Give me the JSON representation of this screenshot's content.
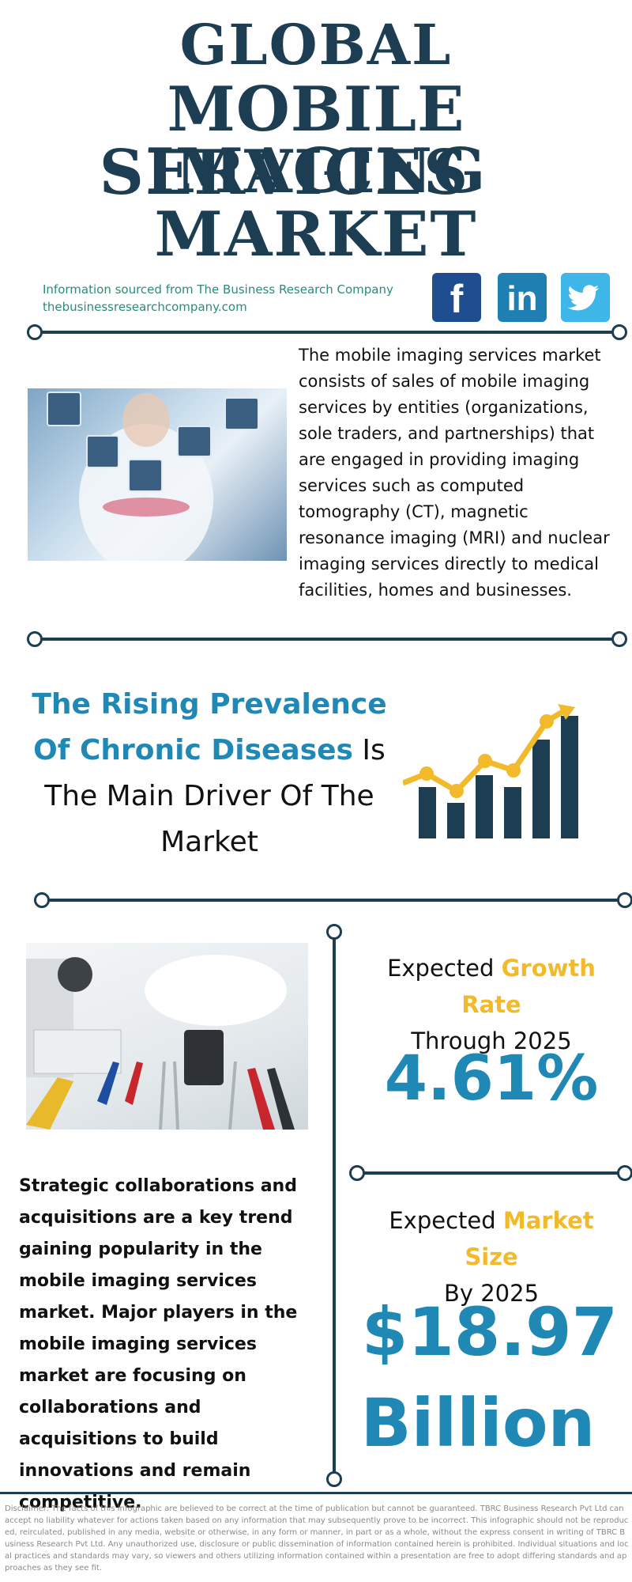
{
  "title": {
    "line1": "GLOBAL",
    "line2": "MOBILE IMAGING",
    "line3": "SERVICES",
    "line4": "MARKET"
  },
  "source": {
    "line1": "Information sourced from The Business Research Company",
    "line2": "thebusinessresearchcompany.com"
  },
  "social": {
    "facebook": "f",
    "linkedin": "in",
    "twitter_icon": "twitter-bird"
  },
  "intro": {
    "text": "The mobile imaging services market consists of sales of mobile imaging services by entities (organizations, sole traders, and partnerships) that are engaged in providing imaging services such as computed tomography (CT), magnetic resonance imaging (MRI) and nuclear imaging services directly to medical facilities, homes and businesses."
  },
  "driver": {
    "highlight1": "The Rising Prevalence",
    "highlight2": "Of Chronic Diseases",
    "rest1": " Is",
    "rest2": "The Main Driver Of The",
    "rest3": "Market"
  },
  "growth": {
    "prefix": "Expected ",
    "highlight": "Growth Rate",
    "line2": "Through 2025",
    "value": "4.61%"
  },
  "market_size": {
    "prefix": "Expected ",
    "highlight": "Market Size",
    "line2": "By 2025",
    "value1": "$18.97",
    "value2": "Billion"
  },
  "trend": {
    "text": "Strategic collaborations and acquisitions are a key trend gaining popularity in the mobile imaging services market. Major players in the mobile imaging services market are focusing on collaborations and acquisitions to build innovations and remain competitive."
  },
  "disclaimer": "Disclaimer: The facts of this infographic are believed to be correct at the time of publication but cannot be guaranteed. TBRC Business Research Pvt Ltd can accept no liability whatever for actions taken based on any information that may subsequently prove to be incorrect. This infographic should not be reproduced, reirculated, published in any media, website or otherwise, in any form or manner, in part or as a whole, without the express consent in writing of TBRC Business Research Pvt Ltd. Any unauthorized use, disclosure or public dissemination of information contained herein is prohibited. Individual situations and local practices and standards may vary, so viewers and others utilizing information contained within a presentation are free to adopt differing standards and approaches as they see fit.",
  "colors": {
    "navy": "#1c3d52",
    "blue": "#1f88b5",
    "yellow": "#f2b92b",
    "teal": "#2d8a7a"
  }
}
